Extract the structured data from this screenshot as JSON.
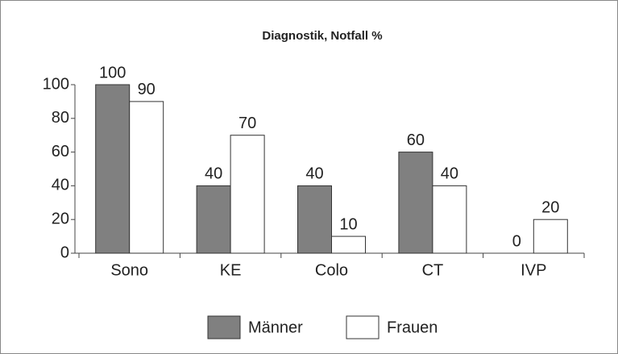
{
  "chart_data": {
    "type": "bar",
    "title": "Diagnostik, Notfall %",
    "categories": [
      "Sono",
      "KE",
      "Colo",
      "CT",
      "IVP"
    ],
    "series": [
      {
        "name": "Männer",
        "color": "#808080",
        "values": [
          100,
          40,
          40,
          60,
          0
        ]
      },
      {
        "name": "Frauen",
        "color": "#ffffff",
        "values": [
          90,
          70,
          10,
          40,
          20
        ]
      }
    ],
    "ylim": [
      0,
      100
    ],
    "yticks": [
      0,
      20,
      40,
      60,
      80,
      100
    ],
    "legend": "bottom"
  }
}
